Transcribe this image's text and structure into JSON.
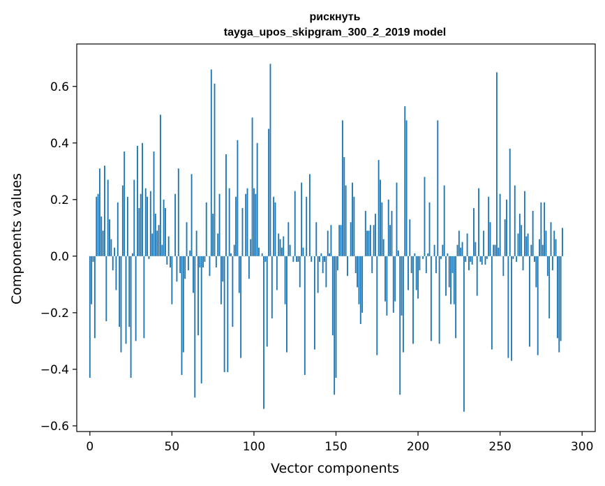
{
  "chart_data": {
    "type": "bar",
    "title": "рискнуть",
    "subtitle": "tayga_upos_skipgram_300_2_2019 model",
    "xlabel": "Vector components",
    "ylabel": "Components values",
    "xlim": [
      -8,
      308
    ],
    "ylim": [
      -0.62,
      0.75
    ],
    "xticks": [
      0,
      50,
      100,
      150,
      200,
      250,
      300
    ],
    "yticks": [
      -0.6,
      -0.4,
      -0.2,
      0.0,
      0.2,
      0.4,
      0.6
    ],
    "ytick_labels": [
      "−0.6",
      "−0.4",
      "−0.2",
      "0.0",
      "0.2",
      "0.4",
      "0.6"
    ],
    "bar_color": "#1f77b4",
    "grid": false,
    "series": [
      {
        "values": [
          -0.43,
          -0.17,
          -0.02,
          -0.29,
          0.21,
          0.22,
          0.31,
          0.14,
          0.09,
          0.32,
          -0.23,
          0.27,
          0.13,
          0.06,
          -0.05,
          0.03,
          -0.12,
          0.19,
          -0.25,
          -0.34,
          0.25,
          0.37,
          -0.31,
          0.21,
          -0.25,
          -0.43,
          0.01,
          0.27,
          -0.3,
          0.39,
          0.17,
          0.22,
          0.4,
          -0.29,
          0.24,
          0.21,
          -0.01,
          0.23,
          0.08,
          0.37,
          0.15,
          0.09,
          0.11,
          0.5,
          0.04,
          0.2,
          0.17,
          -0.03,
          0.07,
          -0.04,
          -0.17,
          0.0,
          0.22,
          -0.09,
          0.31,
          -0.06,
          -0.42,
          -0.34,
          -0.08,
          0.12,
          -0.05,
          0.02,
          0.29,
          -0.13,
          -0.5,
          0.09,
          -0.28,
          -0.04,
          -0.45,
          -0.04,
          -0.02,
          0.19,
          0.0,
          -0.07,
          0.66,
          0.15,
          0.61,
          -0.04,
          0.08,
          0.22,
          -0.17,
          -0.09,
          -0.41,
          0.36,
          -0.41,
          0.24,
          0.01,
          -0.25,
          0.04,
          0.21,
          0.41,
          -0.13,
          -0.36,
          0.17,
          0.0,
          0.22,
          0.24,
          -0.08,
          0.06,
          0.49,
          0.24,
          0.22,
          0.4,
          0.03,
          0.0,
          0.01,
          -0.54,
          -0.02,
          -0.32,
          0.45,
          0.68,
          -0.22,
          0.21,
          0.19,
          -0.12,
          0.08,
          0.06,
          0.03,
          0.07,
          -0.17,
          -0.34,
          0.12,
          0.04,
          0.0,
          -0.02,
          0.23,
          -0.02,
          -0.02,
          -0.11,
          0.26,
          0.03,
          -0.42,
          0.21,
          0.0,
          0.29,
          -0.02,
          0.0,
          -0.33,
          0.12,
          -0.13,
          -0.02,
          0.01,
          -0.06,
          -0.02,
          -0.11,
          0.09,
          0.01,
          0.11,
          -0.28,
          -0.49,
          -0.43,
          -0.05,
          0.11,
          0.11,
          0.48,
          0.35,
          0.25,
          -0.07,
          0.0,
          0.12,
          0.26,
          0.21,
          -0.06,
          -0.11,
          -0.17,
          -0.24,
          -0.2,
          0.0,
          0.16,
          0.09,
          0.09,
          0.11,
          -0.06,
          0.11,
          0.15,
          -0.35,
          0.34,
          0.27,
          0.19,
          0.06,
          -0.16,
          -0.21,
          0.2,
          0.11,
          0.16,
          -0.2,
          -0.16,
          0.26,
          0.02,
          -0.49,
          -0.21,
          -0.34,
          0.53,
          0.48,
          -0.12,
          0.13,
          -0.06,
          -0.31,
          0.01,
          -0.12,
          -0.15,
          -0.05,
          0.0,
          -0.01,
          0.28,
          -0.06,
          0.01,
          0.19,
          -0.3,
          0.0,
          0.04,
          -0.06,
          0.48,
          -0.31,
          -0.01,
          0.04,
          0.25,
          -0.14,
          0.01,
          -0.11,
          -0.17,
          -0.06,
          -0.17,
          -0.29,
          0.04,
          0.09,
          0.03,
          0.05,
          -0.55,
          -0.02,
          0.08,
          -0.05,
          -0.02,
          -0.03,
          0.17,
          0.05,
          -0.14,
          0.24,
          -0.02,
          -0.03,
          0.09,
          -0.03,
          -0.01,
          0.21,
          0.12,
          -0.33,
          0.04,
          0.04,
          0.65,
          0.03,
          0.22,
          0.0,
          -0.07,
          0.13,
          0.2,
          -0.36,
          0.38,
          -0.37,
          -0.01,
          0.25,
          -0.02,
          0.08,
          0.15,
          0.11,
          -0.05,
          0.23,
          0.07,
          0.08,
          -0.32,
          0.04,
          0.16,
          -0.02,
          -0.11,
          -0.35,
          0.06,
          0.19,
          0.04,
          0.19,
          0.09,
          -0.07,
          -0.22,
          0.12,
          -0.05,
          0.09,
          0.06,
          -0.29,
          -0.34,
          -0.3,
          0.1
        ]
      }
    ]
  }
}
